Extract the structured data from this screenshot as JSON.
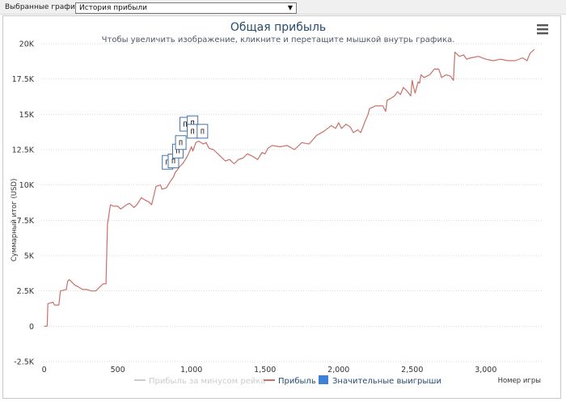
{
  "toolbar": {
    "label": "Выбранные графики:",
    "selected": "История прибыли",
    "arrow": "▼"
  },
  "menu_icon": "hamburger-menu-icon",
  "colors": {
    "line": "#c8706a",
    "line_hidden": "#cccccc",
    "flag_border": "#4572a7",
    "flag_fill": "#ffffff",
    "legend_flag": "#3d82d4",
    "title": "#274b6d",
    "grid": "#d8d8d8"
  },
  "chart_data": {
    "type": "line",
    "title": "Общая прибыль",
    "subtitle": "Чтобы увеличить изображение, кликните и перетащите мышкой внутрь графика.",
    "ylabel": "Суммарный итог (USD)",
    "xlabel": "Номер игры",
    "xlim": [
      -20,
      3380
    ],
    "ylim": [
      -2500,
      20000
    ],
    "x_ticks": [
      0,
      500,
      1000,
      1500,
      2000,
      2500,
      3000
    ],
    "x_tick_labels": [
      "0",
      "500",
      "1,000",
      "1,500",
      "2,000",
      "2,500",
      "3,000"
    ],
    "y_ticks": [
      -2500,
      0,
      2500,
      5000,
      7500,
      10000,
      12500,
      15000,
      17500,
      20000
    ],
    "y_tick_labels": [
      "-2.5K",
      "0",
      "2.5K",
      "5K",
      "7.5K",
      "10K",
      "12.5K",
      "15K",
      "17.5K",
      "20K"
    ],
    "grid": true,
    "legend_position": "bottom-center",
    "legend": [
      {
        "name": "Прибыль за минусом рейка",
        "hidden": true
      },
      {
        "name": "Прибыль",
        "hidden": false
      },
      {
        "name": "Значительные выигрыши",
        "hidden": false
      }
    ],
    "series": [
      {
        "name": "Прибыль",
        "x": [
          0,
          20,
          25,
          60,
          70,
          100,
          110,
          150,
          160,
          170,
          190,
          210,
          230,
          260,
          290,
          320,
          350,
          380,
          400,
          420,
          430,
          450,
          470,
          500,
          520,
          560,
          580,
          610,
          630,
          660,
          690,
          710,
          730,
          760,
          790,
          800,
          830,
          860,
          880,
          890,
          900,
          920,
          940,
          960,
          980,
          1000,
          1010,
          1030,
          1050,
          1080,
          1100,
          1120,
          1150,
          1180,
          1200,
          1230,
          1260,
          1290,
          1320,
          1350,
          1380,
          1420,
          1450,
          1480,
          1500,
          1520,
          1550,
          1600,
          1650,
          1700,
          1720,
          1750,
          1800,
          1850,
          1900,
          1950,
          1980,
          2000,
          2020,
          2050,
          2080,
          2100,
          2130,
          2150,
          2180,
          2200,
          2210,
          2250,
          2300,
          2320,
          2330,
          2350,
          2380,
          2400,
          2420,
          2440,
          2460,
          2490,
          2500,
          2510,
          2520,
          2540,
          2550,
          2560,
          2580,
          2600,
          2620,
          2650,
          2680,
          2700,
          2730,
          2760,
          2780,
          2790,
          2800,
          2820,
          2850,
          2870,
          2900,
          2950,
          3000,
          3050,
          3100,
          3150,
          3200,
          3250,
          3280,
          3300,
          3330
        ],
        "values": [
          0,
          0,
          1600,
          1700,
          1500,
          1500,
          2500,
          2600,
          3200,
          3300,
          3100,
          2900,
          2800,
          2600,
          2600,
          2500,
          2500,
          2800,
          3000,
          3000,
          7200,
          8600,
          8500,
          8500,
          8300,
          8600,
          8700,
          8400,
          8600,
          9100,
          8900,
          8800,
          8600,
          9900,
          10000,
          9700,
          9800,
          10300,
          10600,
          10900,
          11000,
          11300,
          11500,
          11800,
          12200,
          12700,
          12400,
          13000,
          13100,
          12900,
          13000,
          12600,
          12500,
          12200,
          12000,
          11700,
          11800,
          11500,
          11800,
          11900,
          12200,
          12000,
          11800,
          12300,
          12200,
          12600,
          12800,
          12700,
          12800,
          12500,
          12700,
          13000,
          12900,
          13500,
          13800,
          14200,
          14000,
          14400,
          14000,
          14300,
          14100,
          13700,
          13900,
          13700,
          14500,
          15000,
          15400,
          15600,
          15600,
          15200,
          16000,
          16100,
          16300,
          16600,
          16400,
          16900,
          16700,
          16300,
          17400,
          16900,
          16500,
          17300,
          17200,
          17800,
          17600,
          17700,
          17800,
          18200,
          18200,
          17600,
          17800,
          17700,
          17400,
          19400,
          19300,
          19100,
          19200,
          18900,
          19000,
          19100,
          18900,
          18800,
          18900,
          18800,
          18800,
          19000,
          18800,
          19300,
          19600
        ]
      }
    ],
    "flags": [
      {
        "x": 838,
        "y": 11600,
        "text": "П"
      },
      {
        "x": 878,
        "y": 11700,
        "text": "П"
      },
      {
        "x": 908,
        "y": 12400,
        "text": "П"
      },
      {
        "x": 928,
        "y": 13000,
        "text": "П"
      },
      {
        "x": 958,
        "y": 14300,
        "text": "П"
      },
      {
        "x": 1008,
        "y": 14400,
        "text": "П"
      },
      {
        "x": 1008,
        "y": 13800,
        "text": "П"
      },
      {
        "x": 1075,
        "y": 13800,
        "text": "П"
      }
    ]
  }
}
